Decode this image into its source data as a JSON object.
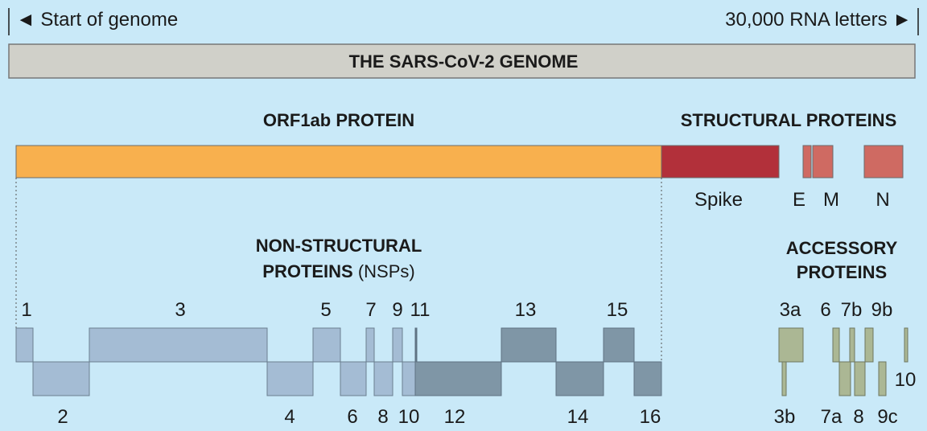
{
  "header": {
    "start_label": "◄ Start of genome",
    "end_label": "30,000 RNA letters ►",
    "genome_bar_label": "THE SARS-CoV-2 GENOME"
  },
  "sections": {
    "orf1ab_title": "ORF1ab PROTEIN",
    "structural_title": "STRUCTURAL PROTEINS",
    "nsp_title_line1": "NON-STRUCTURAL",
    "nsp_title_line2_bold": "PROTEINS",
    "nsp_title_line2_light": " (NSPs)",
    "accessory_title_line1": "ACCESSORY",
    "accessory_title_line2": "PROTEINS"
  },
  "colors": {
    "background": "#c9e9f8",
    "genome_bar": "#d0d0c9",
    "orf1ab": "#f8b04e",
    "spike": "#b2303a",
    "structural_small": "#cf6a62",
    "nsp_light": "#a4bcd4",
    "nsp_dark": "#7f96a6",
    "accessory": "#abb794"
  },
  "structural_proteins": [
    {
      "id": "spike",
      "label": "Spike"
    },
    {
      "id": "e",
      "label": "E"
    },
    {
      "id": "m",
      "label": "M"
    },
    {
      "id": "n",
      "label": "N"
    }
  ],
  "nsps": [
    {
      "label": "1"
    },
    {
      "label": "2"
    },
    {
      "label": "3"
    },
    {
      "label": "4"
    },
    {
      "label": "5"
    },
    {
      "label": "6"
    },
    {
      "label": "7"
    },
    {
      "label": "8"
    },
    {
      "label": "9"
    },
    {
      "label": "10"
    },
    {
      "label": "11"
    },
    {
      "label": "12"
    },
    {
      "label": "13"
    },
    {
      "label": "14"
    },
    {
      "label": "15"
    },
    {
      "label": "16"
    }
  ],
  "accessory_proteins": [
    {
      "label": "3a"
    },
    {
      "label": "3b"
    },
    {
      "label": "6"
    },
    {
      "label": "7a"
    },
    {
      "label": "7b"
    },
    {
      "label": "8"
    },
    {
      "label": "9b"
    },
    {
      "label": "9c"
    },
    {
      "label": "10"
    }
  ]
}
